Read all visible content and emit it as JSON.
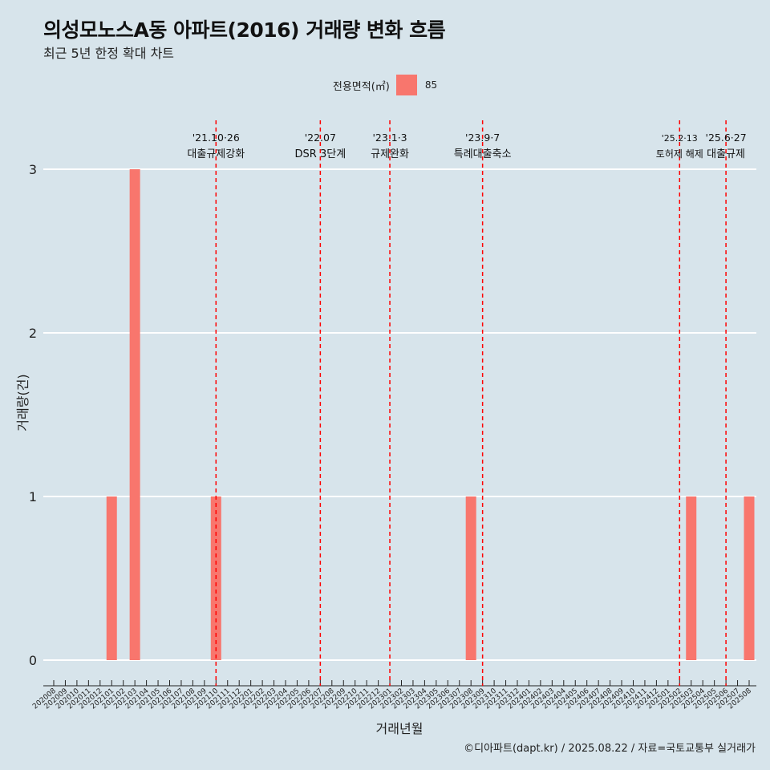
{
  "title": "의성모노스A동 아파트(2016) 거래량 변화 흐름",
  "subtitle": "최근 5년 한정 확대 차트",
  "caption": "©디아파트(dapt.kr) / 2025.08.22 / 자료=국토교통부 실거래가",
  "colors": {
    "bar": "#f8766d",
    "event_line": "#ff0000",
    "grid": "#ffffff",
    "background": "#d7e4eb"
  },
  "chart_data": {
    "type": "bar",
    "xlabel": "거래년월",
    "ylabel": "거래량(건)",
    "ylim": [
      0,
      3
    ],
    "yticks": [
      0,
      1,
      2,
      3
    ],
    "legend": {
      "title": "전용면적(㎡)",
      "position": "top",
      "entries": [
        {
          "label": "85",
          "color": "#f8766d"
        }
      ]
    },
    "categories": [
      "202008",
      "202009",
      "202010",
      "202011",
      "202012",
      "202101",
      "202102",
      "202103",
      "202104",
      "202105",
      "202106",
      "202107",
      "202108",
      "202109",
      "202110",
      "202111",
      "202112",
      "202201",
      "202202",
      "202203",
      "202204",
      "202205",
      "202206",
      "202207",
      "202208",
      "202209",
      "202210",
      "202211",
      "202212",
      "202301",
      "202302",
      "202303",
      "202304",
      "202305",
      "202306",
      "202307",
      "202308",
      "202309",
      "202310",
      "202311",
      "202312",
      "202401",
      "202402",
      "202403",
      "202404",
      "202405",
      "202406",
      "202407",
      "202408",
      "202409",
      "202410",
      "202411",
      "202412",
      "202501",
      "202502",
      "202503",
      "202504",
      "202505",
      "202506",
      "202507",
      "202508"
    ],
    "series": [
      {
        "name": "85",
        "values": [
          0,
          0,
          0,
          0,
          0,
          1,
          0,
          3,
          0,
          0,
          0,
          0,
          0,
          0,
          1,
          0,
          0,
          0,
          0,
          0,
          0,
          0,
          0,
          0,
          0,
          0,
          0,
          0,
          0,
          0,
          0,
          0,
          0,
          0,
          0,
          0,
          1,
          0,
          0,
          0,
          0,
          0,
          0,
          0,
          0,
          0,
          0,
          0,
          0,
          0,
          0,
          0,
          0,
          0,
          0,
          1,
          0,
          0,
          0,
          0,
          1
        ]
      }
    ],
    "events": [
      {
        "x": "202110",
        "date": "'21.10·26",
        "label": "대출규제강화"
      },
      {
        "x": "202207",
        "date": "'22.07",
        "label": "DSR 3단계"
      },
      {
        "x": "202301",
        "date": "'23.1·3",
        "label": "규제완화"
      },
      {
        "x": "202309",
        "date": "'23.9·7",
        "label": "특례대출축소"
      },
      {
        "x": "202502",
        "date": "'25.2·13",
        "label": "토허제 해제"
      },
      {
        "x": "202506",
        "date": "'25.6·27",
        "label": "대출규제"
      }
    ]
  }
}
